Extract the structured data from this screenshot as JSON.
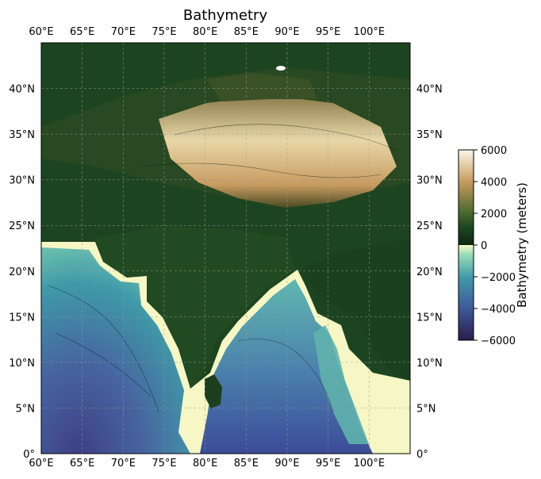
{
  "title": "Bathymetry",
  "map": {
    "lon_range": [
      60,
      105
    ],
    "lat_range": [
      0,
      45
    ],
    "lon_ticks": [
      {
        "value": 60,
        "label": "60°E"
      },
      {
        "value": 65,
        "label": "65°E"
      },
      {
        "value": 70,
        "label": "70°E"
      },
      {
        "value": 75,
        "label": "75°E"
      },
      {
        "value": 80,
        "label": "80°E"
      },
      {
        "value": 85,
        "label": "85°E"
      },
      {
        "value": 90,
        "label": "90°E"
      },
      {
        "value": 95,
        "label": "95°E"
      },
      {
        "value": 100,
        "label": "100°E"
      }
    ],
    "lat_ticks": [
      {
        "value": 0,
        "label": "0°"
      },
      {
        "value": 5,
        "label": "5°N"
      },
      {
        "value": 10,
        "label": "10°N"
      },
      {
        "value": 15,
        "label": "15°N"
      },
      {
        "value": 20,
        "label": "20°N"
      },
      {
        "value": 25,
        "label": "25°N"
      },
      {
        "value": 30,
        "label": "30°N"
      },
      {
        "value": 35,
        "label": "35°N"
      },
      {
        "value": 40,
        "label": "40°N"
      }
    ],
    "gridlines": true,
    "tick_labels_sides": [
      "top",
      "bottom",
      "left",
      "right"
    ]
  },
  "colorbar": {
    "label": "Bathymetry (meters)",
    "range": [
      -6000,
      6000
    ],
    "ticks": [
      {
        "value": 6000,
        "label": "6000"
      },
      {
        "value": 4000,
        "label": "4000"
      },
      {
        "value": 2000,
        "label": "2000"
      },
      {
        "value": 0,
        "label": "0"
      },
      {
        "value": -2000,
        "label": "−2000"
      },
      {
        "value": -4000,
        "label": "−4000"
      },
      {
        "value": -6000,
        "label": "−6000"
      }
    ],
    "colors": {
      "land": [
        "#0f2612",
        "#1f4a22",
        "#5a6a2e",
        "#c49a5a",
        "#fbf7e8"
      ],
      "ocean": [
        "#2b1d4a",
        "#3f5a9a",
        "#3f9aa8",
        "#8ad4b0",
        "#f8f8c8"
      ]
    }
  }
}
